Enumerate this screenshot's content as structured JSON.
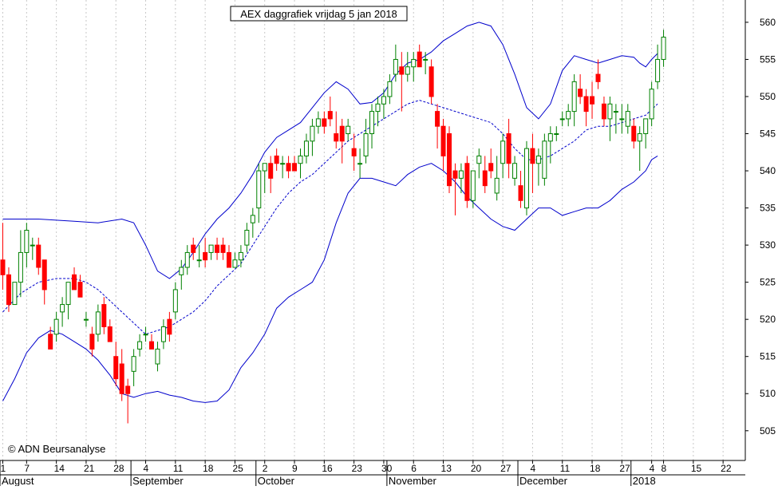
{
  "chart_data": {
    "type": "candlestick",
    "title": "AEX daggrafiek vrijdag 5 jan 2018",
    "watermark": "© ADN Beursanalyse",
    "ylim": [
      501,
      563
    ],
    "y_ticks": [
      505,
      510,
      515,
      520,
      525,
      530,
      535,
      540,
      545,
      550,
      555,
      560
    ],
    "x_ticks": [
      {
        "label": "1",
        "i": 0
      },
      {
        "label": "7",
        "i": 4
      },
      {
        "label": "14",
        "i": 9
      },
      {
        "label": "21",
        "i": 14
      },
      {
        "label": "28",
        "i": 19
      },
      {
        "label": "4",
        "i": 24
      },
      {
        "label": "11",
        "i": 29
      },
      {
        "label": "18",
        "i": 34
      },
      {
        "label": "25",
        "i": 39
      },
      {
        "label": "2",
        "i": 44
      },
      {
        "label": "9",
        "i": 49
      },
      {
        "label": "16",
        "i": 54
      },
      {
        "label": "23",
        "i": 59
      },
      {
        "label": "30",
        "i": 64
      },
      {
        "label": "6",
        "i": 69
      },
      {
        "label": "13",
        "i": 74
      },
      {
        "label": "20",
        "i": 79
      },
      {
        "label": "27",
        "i": 84
      },
      {
        "label": "4",
        "i": 89
      },
      {
        "label": "11",
        "i": 94
      },
      {
        "label": "18",
        "i": 99
      },
      {
        "label": "27",
        "i": 104
      },
      {
        "label": "4",
        "i": 109
      },
      {
        "label": "8",
        "i": 111
      },
      {
        "label": "15",
        "i": 116
      },
      {
        "label": "22",
        "i": 121
      }
    ],
    "months": [
      {
        "label": "August",
        "i": 0
      },
      {
        "label": "September",
        "i": 22
      },
      {
        "label": "October",
        "i": 43
      },
      {
        "label": "November",
        "i": 65
      },
      {
        "label": "December",
        "i": 87
      },
      {
        "label": "2018",
        "i": 106
      }
    ],
    "colors": {
      "up": "#008000",
      "down": "#ff0000",
      "bands": "#0000cc",
      "grid": "#c8c8c8"
    },
    "candles": [
      [
        528,
        533,
        524,
        526
      ],
      [
        526,
        527,
        521,
        522
      ],
      [
        522,
        525,
        522,
        525
      ],
      [
        525,
        532,
        523,
        529
      ],
      [
        529,
        533,
        527,
        532
      ],
      [
        530,
        531,
        528,
        530
      ],
      [
        530,
        531,
        526,
        527
      ],
      [
        528,
        528,
        522,
        524
      ],
      [
        518,
        519,
        516,
        516
      ],
      [
        518,
        521,
        517,
        520
      ],
      [
        521,
        523,
        519,
        522
      ],
      [
        522,
        525,
        520,
        525
      ],
      [
        526,
        527,
        524,
        524
      ],
      [
        525,
        526,
        523,
        523
      ],
      [
        520,
        521,
        519,
        520
      ],
      [
        518,
        519,
        515,
        516
      ],
      [
        518,
        522,
        517,
        521
      ],
      [
        522,
        523,
        518,
        519
      ],
      [
        519,
        520,
        517,
        517
      ],
      [
        515,
        517,
        511,
        512
      ],
      [
        514,
        516,
        509,
        510
      ],
      [
        511,
        512,
        506,
        510
      ],
      [
        513,
        516,
        511,
        515
      ],
      [
        516,
        518,
        515,
        517
      ],
      [
        518,
        519,
        517,
        518
      ],
      [
        517,
        518,
        516,
        516
      ],
      [
        514,
        517,
        513,
        516
      ],
      [
        517,
        520,
        516,
        519
      ],
      [
        520,
        521,
        517,
        518
      ],
      [
        521,
        525,
        520,
        524
      ],
      [
        526,
        528,
        524,
        527
      ],
      [
        527,
        530,
        526,
        529
      ],
      [
        530,
        531,
        528,
        529
      ],
      [
        528,
        530,
        527,
        528
      ],
      [
        529,
        531,
        527,
        528
      ],
      [
        529,
        530,
        528,
        530
      ],
      [
        530,
        531,
        528,
        529
      ],
      [
        530,
        531,
        528,
        529
      ],
      [
        529,
        530,
        527,
        527
      ],
      [
        527,
        529,
        527,
        528
      ],
      [
        528,
        530,
        527,
        529
      ],
      [
        530,
        533,
        529,
        532
      ],
      [
        533,
        535,
        531,
        534
      ],
      [
        535,
        541,
        533,
        540
      ],
      [
        540,
        541,
        537,
        541
      ],
      [
        541,
        542,
        537,
        539
      ],
      [
        542,
        543,
        540,
        541
      ],
      [
        541,
        542,
        539,
        541
      ],
      [
        541,
        542,
        539,
        540
      ],
      [
        541,
        542,
        540,
        540
      ],
      [
        541,
        543,
        539,
        542
      ],
      [
        542,
        545,
        541,
        544
      ],
      [
        544,
        547,
        542,
        546
      ],
      [
        546,
        548,
        545,
        547
      ],
      [
        547,
        548,
        545,
        546
      ],
      [
        548,
        550,
        546,
        547
      ],
      [
        545,
        548,
        543,
        544
      ],
      [
        546,
        547,
        541,
        544
      ],
      [
        545,
        547,
        544,
        546
      ],
      [
        543,
        545,
        540,
        542
      ],
      [
        541,
        543,
        539,
        541
      ],
      [
        542,
        547,
        541,
        545
      ],
      [
        545,
        549,
        543,
        548
      ],
      [
        548,
        550,
        546,
        549
      ],
      [
        549,
        551,
        547,
        550
      ],
      [
        550,
        553,
        549,
        552
      ],
      [
        553,
        557,
        552,
        555
      ],
      [
        554,
        556,
        548,
        553
      ],
      [
        553,
        556,
        552,
        554
      ],
      [
        554,
        556,
        552,
        555
      ],
      [
        556,
        557,
        554,
        554
      ],
      [
        555,
        556,
        553,
        555
      ],
      [
        554,
        555,
        549,
        550
      ],
      [
        548,
        549,
        543,
        546
      ],
      [
        546,
        547,
        540,
        542
      ],
      [
        545,
        546,
        537,
        538
      ],
      [
        540,
        541,
        534,
        539
      ],
      [
        539,
        541,
        537,
        540
      ],
      [
        541,
        542,
        535,
        536
      ],
      [
        536,
        540,
        535,
        540
      ],
      [
        541,
        543,
        539,
        542
      ],
      [
        540,
        542,
        537,
        538
      ],
      [
        541,
        543,
        539,
        540
      ],
      [
        537,
        542,
        536,
        539
      ],
      [
        541,
        545,
        539,
        544
      ],
      [
        545,
        547,
        539,
        541
      ],
      [
        539,
        542,
        538,
        541
      ],
      [
        538,
        540,
        535,
        536
      ],
      [
        535,
        544,
        534,
        543
      ],
      [
        543,
        545,
        537,
        541
      ],
      [
        541,
        543,
        538,
        542
      ],
      [
        539,
        545,
        538,
        544
      ],
      [
        544,
        546,
        541,
        545
      ],
      [
        545,
        546,
        544,
        545
      ],
      [
        547,
        548,
        546,
        547
      ],
      [
        547,
        549,
        546,
        548
      ],
      [
        548,
        553,
        546,
        552
      ],
      [
        551,
        553,
        549,
        550
      ],
      [
        550,
        551,
        546,
        548
      ],
      [
        550,
        552,
        547,
        549
      ],
      [
        553,
        555,
        551,
        552
      ],
      [
        549,
        550,
        546,
        547
      ],
      [
        547,
        550,
        544,
        549
      ],
      [
        548,
        549,
        545,
        548
      ],
      [
        547,
        549,
        545,
        547
      ],
      [
        546,
        549,
        545,
        548
      ],
      [
        546,
        547,
        543,
        544
      ],
      [
        544,
        546,
        540,
        545
      ],
      [
        545,
        547,
        543,
        547
      ],
      [
        547,
        552,
        546,
        551
      ],
      [
        552,
        557,
        551,
        555
      ],
      [
        555,
        559,
        554,
        558
      ]
    ],
    "upper_band": [
      [
        0,
        533.5
      ],
      [
        6,
        533.5
      ],
      [
        12,
        533.2
      ],
      [
        16,
        533.0
      ],
      [
        20,
        533.5
      ],
      [
        22,
        533.0
      ],
      [
        24,
        530
      ],
      [
        26,
        526.5
      ],
      [
        28,
        525.5
      ],
      [
        30,
        526.8
      ],
      [
        32,
        529
      ],
      [
        34,
        531.5
      ],
      [
        36,
        533.5
      ],
      [
        38,
        535
      ],
      [
        40,
        537
      ],
      [
        42,
        539.5
      ],
      [
        44,
        542.5
      ],
      [
        46,
        544.5
      ],
      [
        48,
        545.5
      ],
      [
        50,
        546.5
      ],
      [
        52,
        548.5
      ],
      [
        54,
        550.5
      ],
      [
        56,
        552
      ],
      [
        58,
        551
      ],
      [
        60,
        549
      ],
      [
        62,
        549.2
      ],
      [
        64,
        550.5
      ],
      [
        66,
        553
      ],
      [
        68,
        554.5
      ],
      [
        70,
        555
      ],
      [
        72,
        556
      ],
      [
        74,
        557.5
      ],
      [
        76,
        558.5
      ],
      [
        78,
        559.5
      ],
      [
        80,
        560
      ],
      [
        82,
        559.5
      ],
      [
        84,
        557
      ],
      [
        86,
        553
      ],
      [
        88,
        548.5
      ],
      [
        90,
        547
      ],
      [
        92,
        549
      ],
      [
        94,
        553.5
      ],
      [
        96,
        555.5
      ],
      [
        98,
        555
      ],
      [
        100,
        554.5
      ],
      [
        102,
        555
      ],
      [
        104,
        555.5
      ],
      [
        106,
        555.3
      ],
      [
        107,
        554.5
      ],
      [
        108,
        554
      ],
      [
        109,
        555
      ],
      [
        110,
        555.8
      ]
    ],
    "mid_band": [
      [
        0,
        521
      ],
      [
        3,
        523.5
      ],
      [
        6,
        525
      ],
      [
        9,
        525.5
      ],
      [
        12,
        525.5
      ],
      [
        14,
        525
      ],
      [
        16,
        524
      ],
      [
        18,
        522.5
      ],
      [
        20,
        521
      ],
      [
        22,
        519.5
      ],
      [
        24,
        518
      ],
      [
        26,
        518.5
      ],
      [
        28,
        519
      ],
      [
        30,
        520
      ],
      [
        32,
        521
      ],
      [
        34,
        522.5
      ],
      [
        36,
        524.5
      ],
      [
        38,
        526
      ],
      [
        40,
        527.5
      ],
      [
        42,
        530
      ],
      [
        44,
        532.5
      ],
      [
        46,
        535
      ],
      [
        48,
        537
      ],
      [
        50,
        538.5
      ],
      [
        52,
        539.5
      ],
      [
        54,
        541
      ],
      [
        56,
        542.5
      ],
      [
        58,
        544
      ],
      [
        60,
        545
      ],
      [
        62,
        546
      ],
      [
        64,
        547
      ],
      [
        66,
        548
      ],
      [
        68,
        549
      ],
      [
        70,
        549.5
      ],
      [
        72,
        549
      ],
      [
        74,
        548.5
      ],
      [
        76,
        548
      ],
      [
        78,
        547.5
      ],
      [
        80,
        547
      ],
      [
        82,
        546.5
      ],
      [
        84,
        545
      ],
      [
        86,
        543
      ],
      [
        88,
        541.5
      ],
      [
        90,
        541.5
      ],
      [
        92,
        542
      ],
      [
        94,
        543
      ],
      [
        96,
        544
      ],
      [
        98,
        545.5
      ],
      [
        100,
        546
      ],
      [
        102,
        546
      ],
      [
        104,
        546.5
      ],
      [
        106,
        547
      ],
      [
        108,
        547.5
      ],
      [
        110,
        549
      ]
    ],
    "lower_band": [
      [
        0,
        509
      ],
      [
        2,
        512
      ],
      [
        4,
        515.5
      ],
      [
        6,
        517.5
      ],
      [
        8,
        518.5
      ],
      [
        10,
        518
      ],
      [
        12,
        517
      ],
      [
        14,
        516
      ],
      [
        16,
        514.5
      ],
      [
        18,
        512.5
      ],
      [
        20,
        510
      ],
      [
        22,
        509.5
      ],
      [
        24,
        510
      ],
      [
        26,
        510.3
      ],
      [
        28,
        509.8
      ],
      [
        30,
        509.5
      ],
      [
        32,
        509
      ],
      [
        34,
        508.8
      ],
      [
        36,
        509
      ],
      [
        38,
        510.5
      ],
      [
        40,
        513.5
      ],
      [
        42,
        515.5
      ],
      [
        44,
        518
      ],
      [
        46,
        521.5
      ],
      [
        48,
        523
      ],
      [
        50,
        524
      ],
      [
        52,
        525
      ],
      [
        54,
        528
      ],
      [
        56,
        533
      ],
      [
        58,
        537
      ],
      [
        60,
        539
      ],
      [
        62,
        539
      ],
      [
        64,
        538.5
      ],
      [
        66,
        538
      ],
      [
        68,
        539.5
      ],
      [
        70,
        540.5
      ],
      [
        72,
        541
      ],
      [
        74,
        540
      ],
      [
        76,
        538.5
      ],
      [
        78,
        536.5
      ],
      [
        80,
        535
      ],
      [
        82,
        533.5
      ],
      [
        84,
        532.5
      ],
      [
        86,
        532
      ],
      [
        88,
        533.5
      ],
      [
        90,
        535
      ],
      [
        92,
        535
      ],
      [
        94,
        534
      ],
      [
        96,
        534.5
      ],
      [
        98,
        535
      ],
      [
        100,
        535
      ],
      [
        102,
        536
      ],
      [
        104,
        537.5
      ],
      [
        106,
        538.5
      ],
      [
        108,
        540
      ],
      [
        109,
        541.5
      ],
      [
        110,
        542
      ]
    ]
  }
}
